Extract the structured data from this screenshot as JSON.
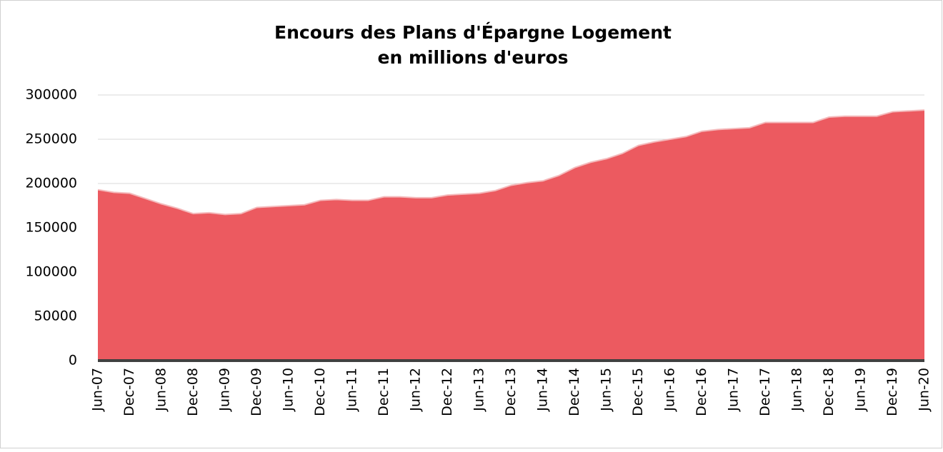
{
  "chart_data": {
    "type": "area",
    "title": "Encours des Plans d'Épargne Logement",
    "subtitle": "en millions d'euros",
    "categories": [
      "Jun-07",
      null,
      "Dec-07",
      null,
      "Jun-08",
      null,
      "Dec-08",
      null,
      "Jun-09",
      null,
      "Dec-09",
      null,
      "Jun-10",
      null,
      "Dec-10",
      null,
      "Jun-11",
      null,
      "Dec-11",
      null,
      "Jun-12",
      null,
      "Dec-12",
      null,
      "Jun-13",
      null,
      "Dec-13",
      null,
      "Jun-14",
      null,
      "Dec-14",
      null,
      "Jun-15",
      null,
      "Dec-15",
      null,
      "Jun-16",
      null,
      "Dec-16",
      null,
      "Jun-17",
      null,
      "Dec-17",
      null,
      "Jun-18",
      null,
      "Dec-18",
      null,
      "Jun-19",
      null,
      "Dec-19",
      null,
      "Jun-20"
    ],
    "values": [
      193000,
      190000,
      189000,
      183000,
      177000,
      172000,
      166000,
      167000,
      165000,
      166000,
      173000,
      174000,
      175000,
      176000,
      181000,
      182000,
      181000,
      181000,
      185000,
      185000,
      184000,
      184000,
      187000,
      188000,
      189000,
      192000,
      198000,
      201000,
      203000,
      209000,
      218000,
      224000,
      228000,
      234000,
      243000,
      247000,
      250000,
      253000,
      259000,
      261000,
      262000,
      263000,
      269000,
      269000,
      269000,
      269000,
      275000,
      276000,
      276000,
      276000,
      281000,
      282000,
      283000
    ],
    "color": "#ec5a60",
    "line_color": "#f4b9bb",
    "ylim": [
      0,
      300000
    ],
    "yticks": [
      0,
      50000,
      100000,
      150000,
      200000,
      250000,
      300000
    ],
    "grid": true
  }
}
